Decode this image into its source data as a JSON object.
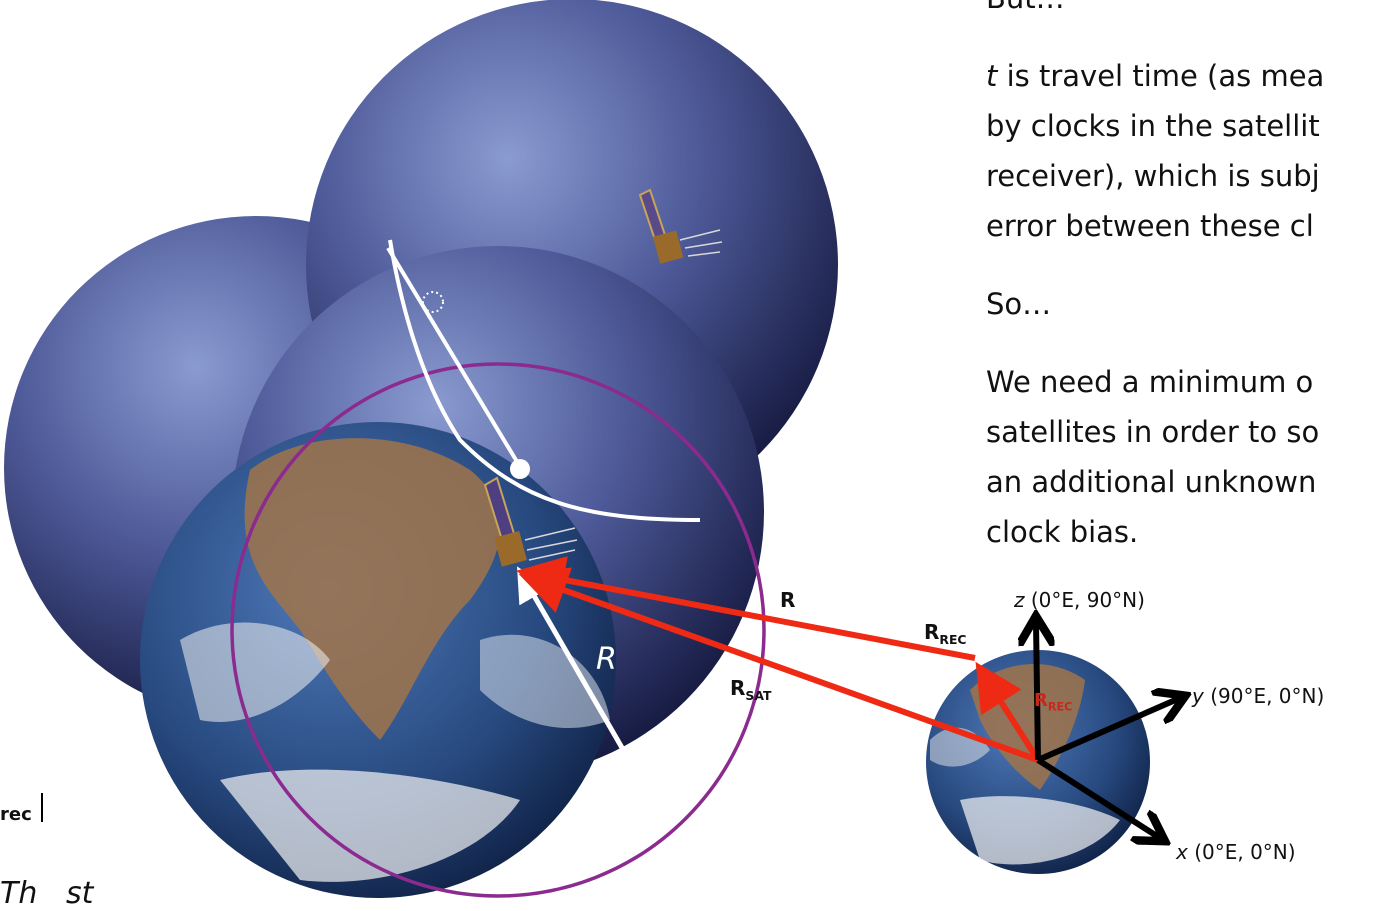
{
  "text": {
    "but": "But…",
    "t_var": "t",
    "para1_line1": " is travel time (as mea",
    "para1_line2": "by clocks in the satellit",
    "para1_line3": "receiver), which is subj",
    "para1_line4": "error between these cl",
    "so": "So…",
    "para2_line1": "We need a minimum o",
    "para2_line2": "satellites in order to so",
    "para2_line3": "an additional unknown",
    "para2_line4": "clock bias."
  },
  "labels": {
    "R_radius": "R",
    "R_vec": "R",
    "R_sat_main": "R",
    "R_sat_sub": "SAT",
    "R_rec_main": "R",
    "R_rec_sub": "REC",
    "R_rec_small_main": "R",
    "R_rec_small_sub": "REC",
    "z_axis_var": "z",
    "z_axis": " (0°E, 90°N)",
    "y_axis_var": "y",
    "y_axis": " (90°E, 0°N)",
    "x_axis_var": "x",
    "x_axis": " (0°E, 0°N)",
    "left_fragment_sub": "rec",
    "bottom_fragment": "Th   st"
  },
  "colors": {
    "sphere": "#2a2f6a",
    "circle": "#8b2a8f",
    "vector_red": "#ef2a14",
    "axis": "#000000",
    "white": "#ffffff"
  }
}
